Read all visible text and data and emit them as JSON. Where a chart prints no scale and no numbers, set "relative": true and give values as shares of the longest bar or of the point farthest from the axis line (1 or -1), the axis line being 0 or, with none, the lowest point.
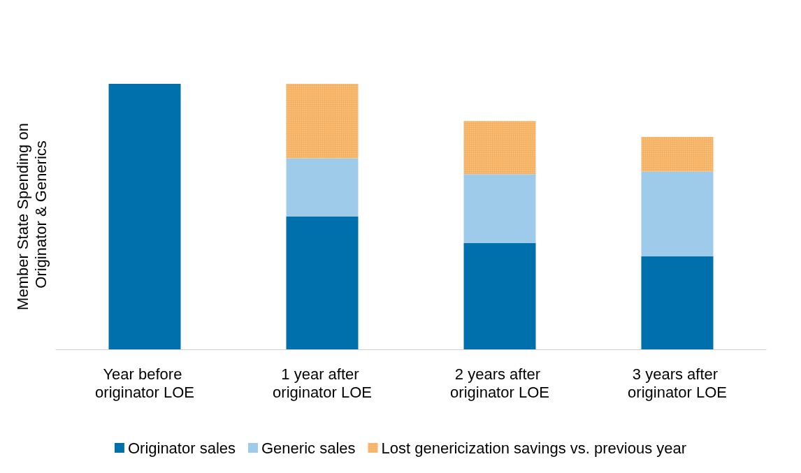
{
  "chart_data": {
    "type": "bar",
    "stacked": true,
    "relative": true,
    "ylabel": "Member State Spending on Originator & Generics",
    "categories": [
      "Year before originator LOE",
      "1 year after originator LOE",
      "2 years after originator LOE",
      "3 years after originator LOE"
    ],
    "series": [
      {
        "name": "Originator sales",
        "color": "#0070ad",
        "values": [
          1,
          0.5,
          0.4,
          0.35
        ]
      },
      {
        "name": "Generic sales",
        "color": "#9fcbeb",
        "values": [
          null,
          0.22,
          0.26,
          0.32
        ]
      },
      {
        "name": "Lost genericization savings vs. previous year",
        "color": "#f5b060",
        "values": [
          null,
          0.28,
          0.2,
          0.13
        ]
      }
    ],
    "legend": "bottom"
  }
}
